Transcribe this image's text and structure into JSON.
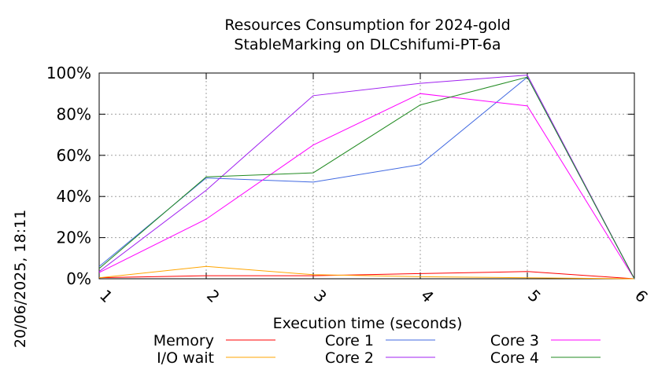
{
  "chart_data": {
    "type": "line",
    "title": "Resources Consumption for 2024-gold",
    "subtitle": "StableMarking on DLCshifumi-PT-6a",
    "xlabel": "Execution time (seconds)",
    "ylabel": "",
    "side_label": "20/06/2025, 18:11",
    "x": [
      1,
      2,
      3,
      4,
      5,
      6
    ],
    "x_tick_labels": [
      "1",
      "2",
      "3",
      "4",
      "5",
      "6"
    ],
    "xlim": [
      1,
      6
    ],
    "ylim": [
      0,
      100
    ],
    "y_tick_values": [
      0,
      20,
      40,
      60,
      80,
      100
    ],
    "y_tick_labels": [
      "0%",
      "20%",
      "40%",
      "60%",
      "80%",
      "100%"
    ],
    "grid": true,
    "legend_position": "bottom",
    "series": [
      {
        "name": "Memory",
        "color": "#ff0000",
        "values": [
          0.5,
          1.5,
          1.5,
          2.5,
          3.5,
          0
        ]
      },
      {
        "name": "I/O wait",
        "color": "#ffa500",
        "values": [
          0.5,
          6,
          2,
          1,
          0.5,
          0
        ]
      },
      {
        "name": "Core 1",
        "color": "#4169e1",
        "values": [
          6,
          49,
          47,
          55.5,
          98,
          0
        ]
      },
      {
        "name": "Core 2",
        "color": "#a020f0",
        "values": [
          3.5,
          43,
          89,
          95,
          99,
          0
        ]
      },
      {
        "name": "Core 3",
        "color": "#ff00ff",
        "values": [
          3,
          29,
          65,
          90,
          84,
          0
        ]
      },
      {
        "name": "Core 4",
        "color": "#228b22",
        "values": [
          5,
          49.5,
          51.5,
          84.5,
          98,
          0
        ]
      }
    ]
  }
}
